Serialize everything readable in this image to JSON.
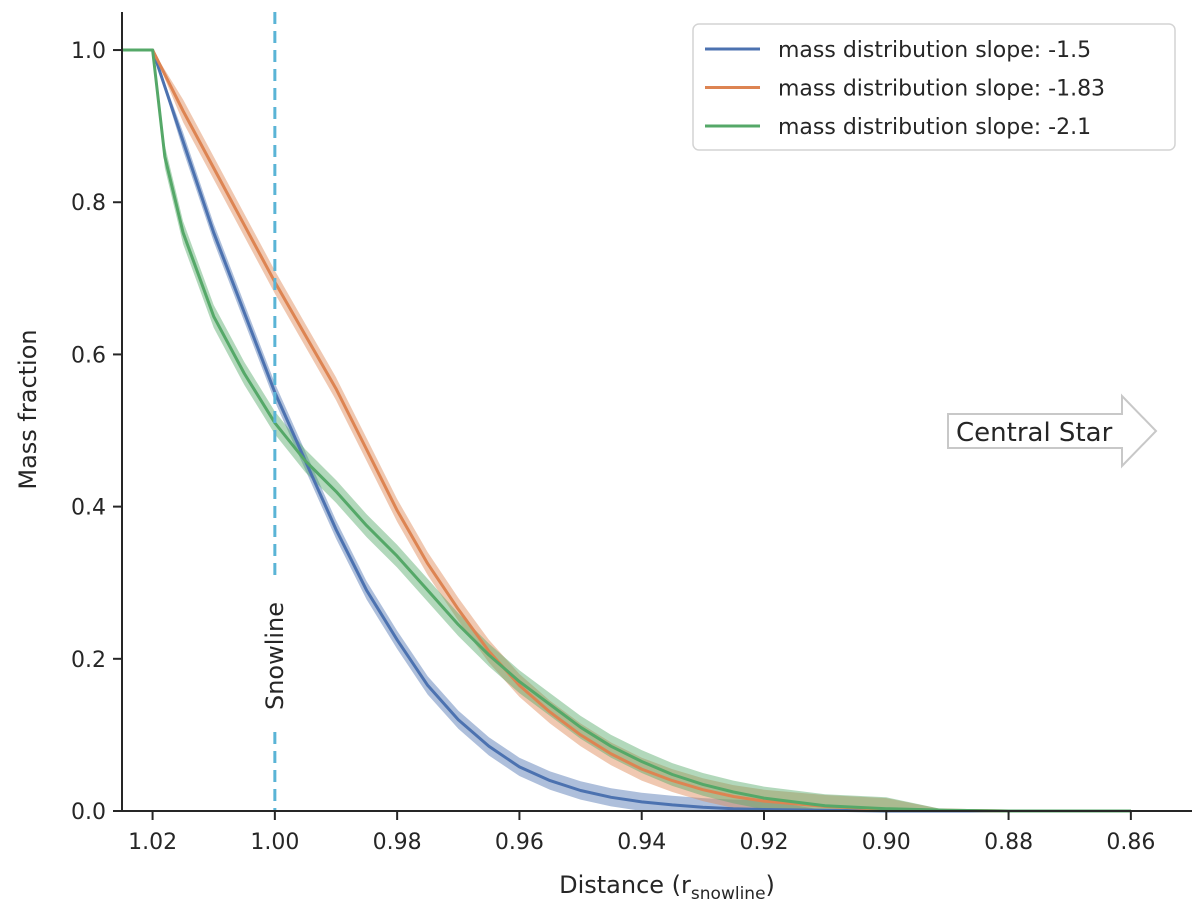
{
  "chart_data": {
    "type": "line",
    "xlabel": "Distance (r",
    "xlabel_sub": "snowline",
    "xlabel_close": ")",
    "ylabel": "Mass fraction",
    "xlim": [
      1.025,
      0.85
    ],
    "ylim": [
      0.0,
      1.05
    ],
    "x_ticks": [
      1.02,
      1.0,
      0.98,
      0.96,
      0.94,
      0.92,
      0.9,
      0.88,
      0.86
    ],
    "x_tick_labels": [
      "1.02",
      "1.00",
      "0.98",
      "0.96",
      "0.94",
      "0.92",
      "0.90",
      "0.88",
      "0.86"
    ],
    "y_ticks": [
      0.0,
      0.2,
      0.4,
      0.6,
      0.8,
      1.0
    ],
    "y_tick_labels": [
      "0.0",
      "0.2",
      "0.4",
      "0.6",
      "0.8",
      "1.0"
    ],
    "legend_position": "top-right",
    "series": [
      {
        "name": "mass distribution slope: -1.5",
        "color": "#4c72b0",
        "x": [
          1.025,
          1.02,
          1.015,
          1.01,
          1.005,
          1.0,
          0.995,
          0.99,
          0.985,
          0.98,
          0.975,
          0.97,
          0.965,
          0.96,
          0.955,
          0.95,
          0.945,
          0.94,
          0.935,
          0.93,
          0.925,
          0.92,
          0.91,
          0.9,
          0.89,
          0.88,
          0.87,
          0.86
        ],
        "y": [
          1.0,
          1.0,
          0.88,
          0.76,
          0.655,
          0.55,
          0.46,
          0.37,
          0.29,
          0.225,
          0.165,
          0.12,
          0.085,
          0.058,
          0.04,
          0.027,
          0.018,
          0.012,
          0.008,
          0.005,
          0.003,
          0.002,
          0.001,
          0.0,
          0.0,
          0.0,
          0.0,
          0.0
        ],
        "band": 0.012
      },
      {
        "name": "mass distribution slope: -1.83",
        "color": "#dd8452",
        "x": [
          1.025,
          1.02,
          1.015,
          1.01,
          1.005,
          1.0,
          0.995,
          0.99,
          0.985,
          0.98,
          0.975,
          0.97,
          0.965,
          0.96,
          0.955,
          0.95,
          0.945,
          0.94,
          0.935,
          0.93,
          0.925,
          0.92,
          0.91,
          0.9,
          0.89,
          0.88,
          0.87,
          0.86
        ],
        "y": [
          1.0,
          1.0,
          0.92,
          0.845,
          0.77,
          0.695,
          0.625,
          0.555,
          0.475,
          0.395,
          0.325,
          0.265,
          0.21,
          0.165,
          0.13,
          0.1,
          0.075,
          0.055,
          0.04,
          0.028,
          0.019,
          0.013,
          0.006,
          0.002,
          0.001,
          0.0,
          0.0,
          0.0
        ],
        "band": 0.015
      },
      {
        "name": "mass distribution slope: -2.1",
        "color": "#55a868",
        "x": [
          1.025,
          1.02,
          1.018,
          1.015,
          1.01,
          1.005,
          1.0,
          0.995,
          0.99,
          0.985,
          0.98,
          0.975,
          0.97,
          0.965,
          0.96,
          0.955,
          0.95,
          0.945,
          0.94,
          0.935,
          0.93,
          0.925,
          0.92,
          0.91,
          0.9,
          0.89,
          0.88,
          0.87,
          0.86
        ],
        "y": [
          1.0,
          1.0,
          0.86,
          0.76,
          0.65,
          0.575,
          0.51,
          0.46,
          0.42,
          0.375,
          0.335,
          0.29,
          0.245,
          0.205,
          0.17,
          0.14,
          0.11,
          0.085,
          0.065,
          0.048,
          0.035,
          0.025,
          0.017,
          0.007,
          0.003,
          0.001,
          0.0,
          0.0,
          0.0
        ],
        "band": 0.015
      }
    ],
    "snowline": {
      "x": 1.0,
      "label": "Snowline",
      "color": "#5ab4d6"
    },
    "arrow_annotation": {
      "text": "Central Star"
    }
  }
}
